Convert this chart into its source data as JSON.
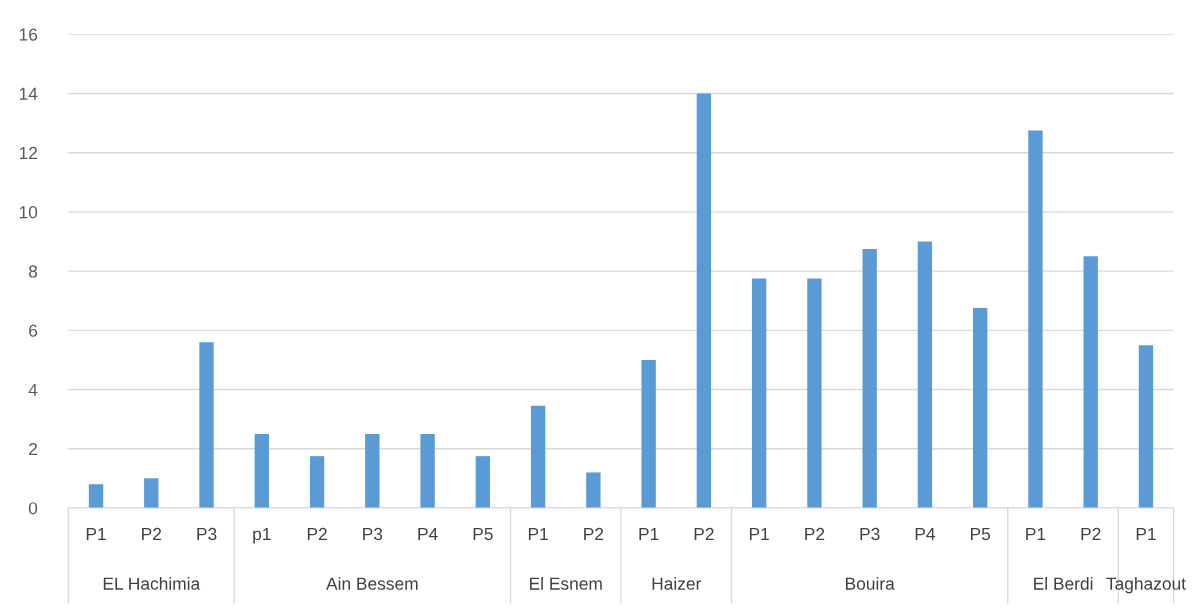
{
  "chart_data": {
    "type": "bar",
    "categories": [
      "P1",
      "P2",
      "P3",
      "p1",
      "P2",
      "P3",
      "P4",
      "P5",
      "P1",
      "P2",
      "P1",
      "P2",
      "P1",
      "P2",
      "P3",
      "P4",
      "P5",
      "P1",
      "P2",
      "P1"
    ],
    "values": [
      0.8,
      1.0,
      5.6,
      2.5,
      1.75,
      2.5,
      2.5,
      1.75,
      3.45,
      1.2,
      5.0,
      14.0,
      7.75,
      7.75,
      8.75,
      9.0,
      6.75,
      12.75,
      8.5,
      5.5
    ],
    "color": "#5b9bd5",
    "ylim": [
      0,
      16
    ],
    "yticks": [
      0,
      2,
      4,
      6,
      8,
      10,
      12,
      14,
      16
    ],
    "grid": "y",
    "annotations": [
      "EL Hachimia",
      "Ain Bessem",
      "El Esnem",
      "Haizer",
      "Bouira",
      "El Berdi",
      "Taghazout"
    ]
  }
}
